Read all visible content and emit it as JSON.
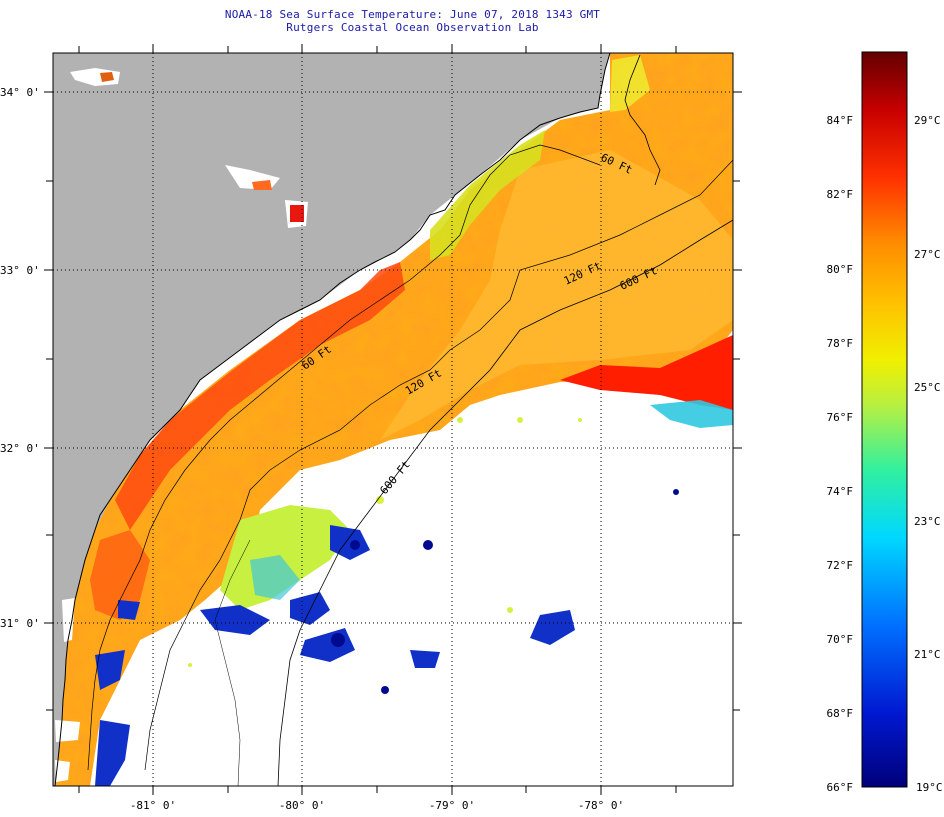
{
  "header": {
    "title": "NOAA-18 Sea Surface Temperature:  June 07, 2018 1343 GMT",
    "subtitle": "Rutgers Coastal Ocean Observation Lab"
  },
  "map": {
    "lat_labels": [
      "34° 0'",
      "33° 0'",
      "32° 0'",
      "31° 0'"
    ],
    "lon_labels": [
      "-81° 0'",
      "-80° 0'",
      "-79° 0'",
      "-78° 0'"
    ],
    "isobath_labels": [
      "120 Ft",
      "600 Ft",
      "120 Ft",
      "60 Ft",
      "60 Ft",
      "600 Ft"
    ]
  },
  "colorbar": {
    "f_labels": [
      "84°F",
      "82°F",
      "80°F",
      "78°F",
      "76°F",
      "74°F",
      "72°F",
      "70°F",
      "68°F",
      "66°F"
    ],
    "c_labels": [
      "29°C",
      "27°C",
      "25°C",
      "23°C",
      "21°C",
      "19°C"
    ]
  },
  "colors": {
    "land": "#b2b2b2",
    "no_data": "#ffffff",
    "scale": [
      "#00007a",
      "#0010c8",
      "#0050ff",
      "#00c8ff",
      "#20e8c0",
      "#9ef050",
      "#f0f000",
      "#ffc000",
      "#ff8000",
      "#ff2000",
      "#c00000",
      "#700000"
    ]
  }
}
